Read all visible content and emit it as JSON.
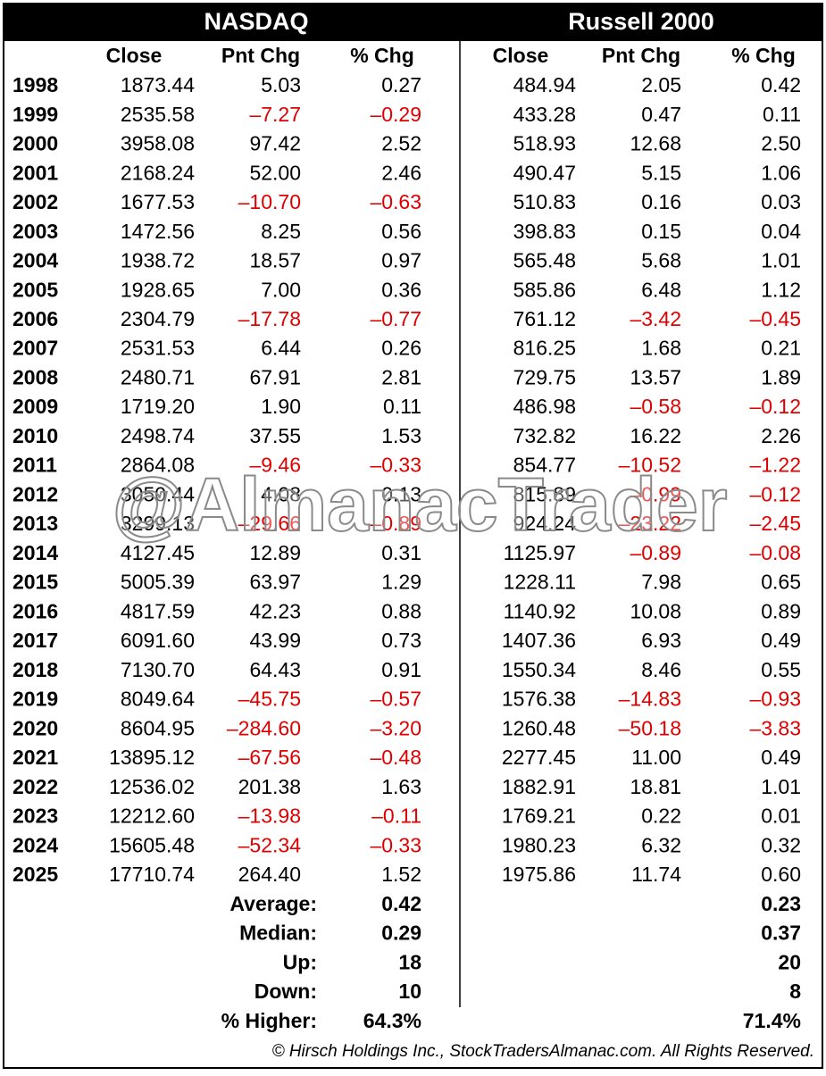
{
  "header": {
    "left": "NASDAQ",
    "right": "Russell 2000"
  },
  "table": {
    "columns": [
      "Close",
      "Pnt Chg",
      "% Chg",
      "Close",
      "Pnt Chg",
      "% Chg"
    ],
    "rows": [
      [
        "1998",
        "1873.44",
        "5.03",
        "0.27",
        "484.94",
        "2.05",
        "0.42"
      ],
      [
        "1999",
        "2535.58",
        "–7.27",
        "–0.29",
        "433.28",
        "0.47",
        "0.11"
      ],
      [
        "2000",
        "3958.08",
        "97.42",
        "2.52",
        "518.93",
        "12.68",
        "2.50"
      ],
      [
        "2001",
        "2168.24",
        "52.00",
        "2.46",
        "490.47",
        "5.15",
        "1.06"
      ],
      [
        "2002",
        "1677.53",
        "–10.70",
        "–0.63",
        "510.83",
        "0.16",
        "0.03"
      ],
      [
        "2003",
        "1472.56",
        "8.25",
        "0.56",
        "398.83",
        "0.15",
        "0.04"
      ],
      [
        "2004",
        "1938.72",
        "18.57",
        "0.97",
        "565.48",
        "5.68",
        "1.01"
      ],
      [
        "2005",
        "1928.65",
        "7.00",
        "0.36",
        "585.86",
        "6.48",
        "1.12"
      ],
      [
        "2006",
        "2304.79",
        "–17.78",
        "–0.77",
        "761.12",
        "–3.42",
        "–0.45"
      ],
      [
        "2007",
        "2531.53",
        "6.44",
        "0.26",
        "816.25",
        "1.68",
        "0.21"
      ],
      [
        "2008",
        "2480.71",
        "67.91",
        "2.81",
        "729.75",
        "13.57",
        "1.89"
      ],
      [
        "2009",
        "1719.20",
        "1.90",
        "0.11",
        "486.98",
        "–0.58",
        "–0.12"
      ],
      [
        "2010",
        "2498.74",
        "37.55",
        "1.53",
        "732.82",
        "16.22",
        "2.26"
      ],
      [
        "2011",
        "2864.08",
        "–9.46",
        "–0.33",
        "854.77",
        "–10.52",
        "–1.22"
      ],
      [
        "2012",
        "3050.44",
        "4.08",
        "0.13",
        "815.89",
        "–0.99",
        "–0.12"
      ],
      [
        "2013",
        "3299.13",
        "–29.66",
        "–0.89",
        "924.24",
        "–23.22",
        "–2.45"
      ],
      [
        "2014",
        "4127.45",
        "12.89",
        "0.31",
        "1125.97",
        "–0.89",
        "–0.08"
      ],
      [
        "2015",
        "5005.39",
        "63.97",
        "1.29",
        "1228.11",
        "7.98",
        "0.65"
      ],
      [
        "2016",
        "4817.59",
        "42.23",
        "0.88",
        "1140.92",
        "10.08",
        "0.89"
      ],
      [
        "2017",
        "6091.60",
        "43.99",
        "0.73",
        "1407.36",
        "6.93",
        "0.49"
      ],
      [
        "2018",
        "7130.70",
        "64.43",
        "0.91",
        "1550.34",
        "8.46",
        "0.55"
      ],
      [
        "2019",
        "8049.64",
        "–45.75",
        "–0.57",
        "1576.38",
        "–14.83",
        "–0.93"
      ],
      [
        "2020",
        "8604.95",
        "–284.60",
        "–3.20",
        "1260.48",
        "–50.18",
        "–3.83"
      ],
      [
        "2021",
        "13895.12",
        "–67.56",
        "–0.48",
        "2277.45",
        "11.00",
        "0.49"
      ],
      [
        "2022",
        "12536.02",
        "201.38",
        "1.63",
        "1882.91",
        "18.81",
        "1.01"
      ],
      [
        "2023",
        "12212.60",
        "–13.98",
        "–0.11",
        "1769.21",
        "0.22",
        "0.01"
      ],
      [
        "2024",
        "15605.48",
        "–52.34",
        "–0.33",
        "1980.23",
        "6.32",
        "0.32"
      ],
      [
        "2025",
        "17710.74",
        "264.40",
        "1.52",
        "1975.86",
        "11.74",
        "0.60"
      ]
    ],
    "summary": [
      [
        "Average:",
        "0.42",
        "0.23"
      ],
      [
        "Median:",
        "0.29",
        "0.37"
      ],
      [
        "Up:",
        "18",
        "20"
      ],
      [
        "Down:",
        "10",
        "8"
      ],
      [
        "% Higher:",
        "64.3%",
        "71.4%"
      ]
    ]
  },
  "watermark": "@AlmanacTrader",
  "footer": "© Hirsch Holdings Inc., StockTradersAlmanac.com. All Rights Reserved."
}
